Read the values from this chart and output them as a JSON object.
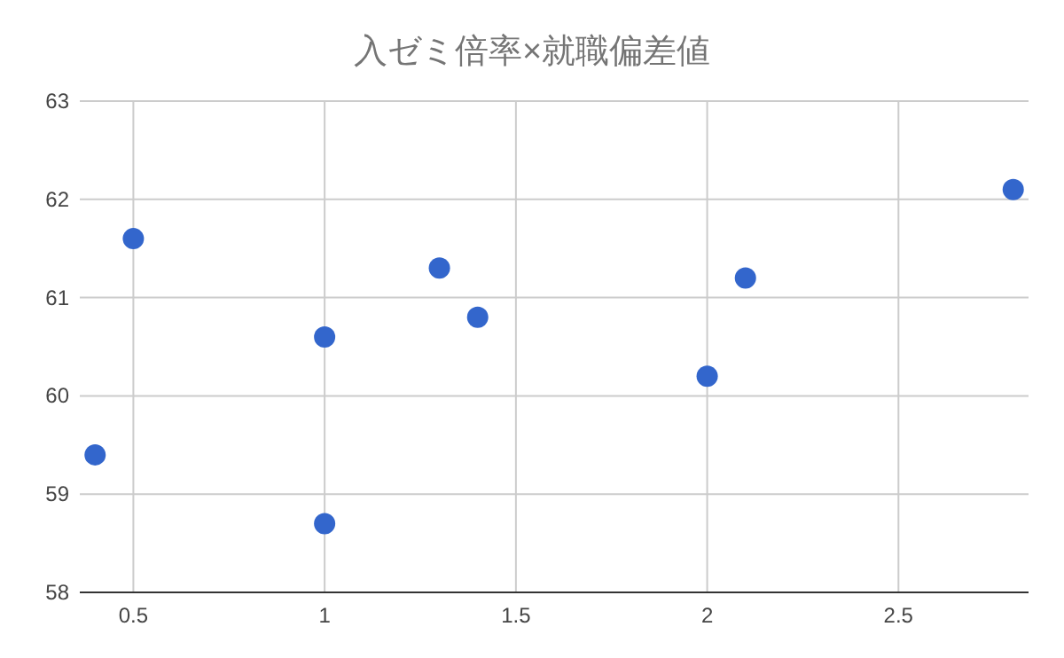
{
  "chart_data": {
    "type": "scatter",
    "title": "入ゼミ倍率×就職偏差値",
    "x": [
      0.4,
      0.5,
      1,
      1,
      1.3,
      1.4,
      2,
      2.1,
      2.8
    ],
    "values": [
      59.4,
      61.6,
      60.6,
      58.7,
      61.3,
      60.8,
      60.2,
      61.2,
      62.1
    ],
    "color": "#3366cc",
    "marker": "circle",
    "xlim": [
      0.36,
      2.84
    ],
    "ylim": [
      58,
      63
    ],
    "xticks": [
      0.5,
      1,
      1.5,
      2,
      2.5
    ],
    "yticks": [
      58,
      59,
      60,
      61,
      62,
      63
    ],
    "grid": true
  }
}
